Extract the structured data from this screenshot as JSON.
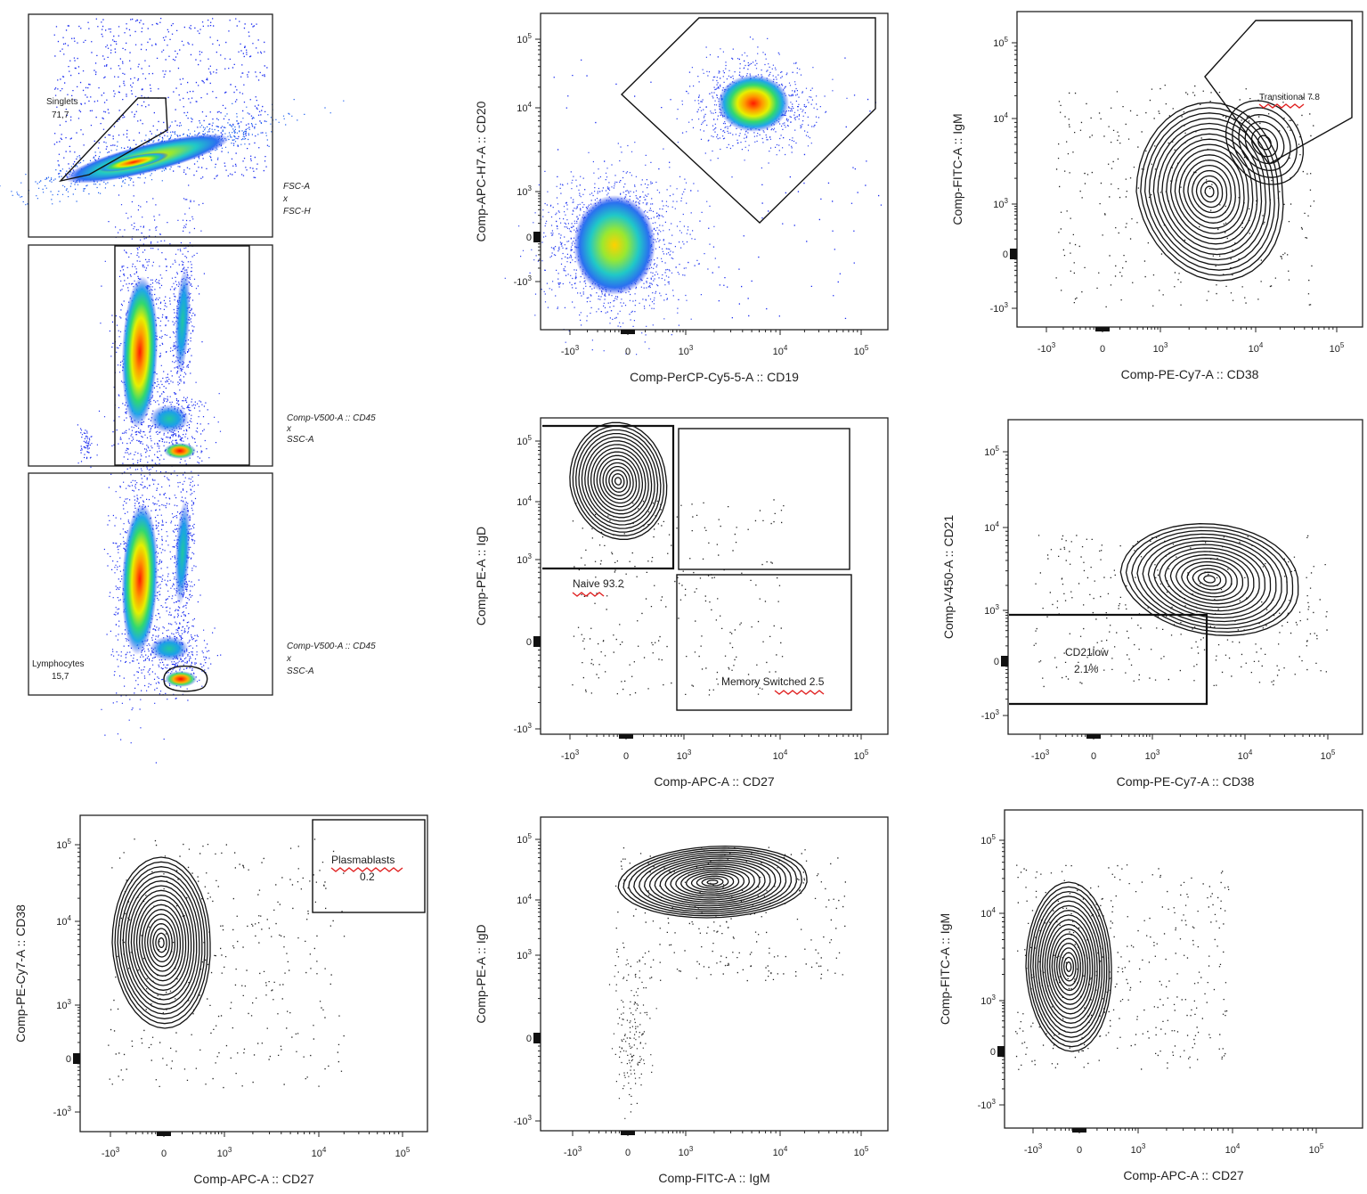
{
  "chart_data": [
    {
      "panel": "A1",
      "type": "scatter",
      "gate_label": "Singlets",
      "gate_value": "71,7",
      "side_label": [
        "FSC-A",
        "x",
        "FSC-H"
      ]
    },
    {
      "panel": "A2",
      "type": "scatter",
      "side_label": [
        "Comp-V500-A :: CD45",
        "x",
        "SSC-A"
      ]
    },
    {
      "panel": "A3",
      "type": "scatter",
      "gate_label": "Lymphocytes",
      "gate_value": "15,7",
      "side_label": [
        "Comp-V500-A :: CD45",
        "x",
        "SSC-A"
      ]
    },
    {
      "panel": "B1",
      "type": "scatter",
      "xlabel": "Comp-PerCP-Cy5-5-A :: CD19",
      "ylabel": "Comp-APC-H7-A :: CD20",
      "xticks": [
        "-10^3",
        "0",
        "10^3",
        "10^4",
        "10^5"
      ],
      "yticks": [
        "10^5",
        "10^4",
        "10^3",
        "0",
        "-10^3"
      ]
    },
    {
      "panel": "C1",
      "type": "contour",
      "xlabel": "Comp-PE-Cy7-A :: CD38",
      "ylabel": "Comp-FITC-A :: IgM",
      "gate_label": "Transitional 7.8",
      "xticks": [
        "-10^3",
        "0",
        "10^3",
        "10^4",
        "10^5"
      ],
      "yticks": [
        "10^5",
        "10^4",
        "10^3",
        "0",
        "-10^3"
      ]
    },
    {
      "panel": "B2",
      "type": "contour",
      "xlabel": "Comp-APC-A :: CD27",
      "ylabel": "Comp-PE-A :: IgD",
      "gates": [
        {
          "label": "Naive 93.2"
        },
        {
          "label": "Memory Switched 2.5"
        }
      ],
      "xticks": [
        "-10^3",
        "0",
        "10^3",
        "10^4",
        "10^5"
      ],
      "yticks": [
        "10^5",
        "10^4",
        "10^3",
        "0",
        "-10^3"
      ]
    },
    {
      "panel": "C2",
      "type": "contour",
      "xlabel": "Comp-PE-Cy7-A :: CD38",
      "ylabel": "Comp-V450-A :: CD21",
      "gate_label": [
        "CD21low",
        "2.1%"
      ],
      "xticks": [
        "-10^3",
        "0",
        "10^3",
        "10^4",
        "10^5"
      ],
      "yticks": [
        "10^5",
        "10^4",
        "10^3",
        "0",
        "-10^3"
      ]
    },
    {
      "panel": "A4",
      "type": "contour",
      "xlabel": "Comp-APC-A :: CD27",
      "ylabel": "Comp-PE-Cy7-A :: CD38",
      "gate_label": [
        "Plasmablasts",
        "0.2"
      ],
      "xticks": [
        "-10^3",
        "0",
        "10^3",
        "10^4",
        "10^5"
      ],
      "yticks": [
        "10^5",
        "10^4",
        "10^3",
        "0",
        "-10^3"
      ]
    },
    {
      "panel": "B3",
      "type": "contour",
      "xlabel": "Comp-FITC-A :: IgM",
      "ylabel": "Comp-PE-A :: IgD",
      "xticks": [
        "-10^3",
        "0",
        "10^3",
        "10^4",
        "10^5"
      ],
      "yticks": [
        "10^5",
        "10^4",
        "10^3",
        "0",
        "-10^3"
      ]
    },
    {
      "panel": "C3",
      "type": "contour",
      "xlabel": "Comp-APC-A :: CD27",
      "ylabel": "Comp-FITC-A :: IgM",
      "xticks": [
        "-10^3",
        "0",
        "10^3",
        "10^4",
        "10^5"
      ],
      "yticks": [
        "10^5",
        "10^4",
        "10^3",
        "0",
        "-10^3"
      ]
    }
  ]
}
